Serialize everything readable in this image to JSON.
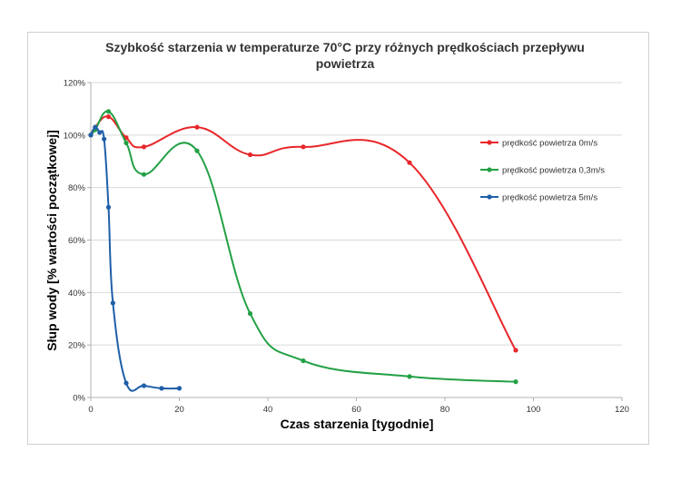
{
  "chart_data": {
    "type": "line",
    "title_line1": "Szybkość starzenia w temperaturze 70°C przy różnych prędkościach przepływu",
    "title_line2": "powietrza",
    "xlabel": "Czas starzenia [tygodnie]",
    "ylabel": "Słup wody [% wartości początkowej]",
    "xlim": [
      0,
      120
    ],
    "ylim": [
      0,
      1.2
    ],
    "x_ticks": [
      0,
      20,
      40,
      60,
      80,
      100,
      120
    ],
    "y_ticks": [
      0,
      0.2,
      0.4,
      0.6,
      0.8,
      1.0,
      1.2
    ],
    "x_tick_labels": [
      "0",
      "20",
      "40",
      "60",
      "80",
      "100",
      "120"
    ],
    "y_tick_labels": [
      "0%",
      "20%",
      "40%",
      "60%",
      "80%",
      "100%",
      "120%"
    ],
    "grid": true,
    "legend_position": "right",
    "series": [
      {
        "name": "prędkość powietrza  0m/s",
        "color": "#e8262a",
        "x": [
          0,
          1,
          4,
          8,
          12,
          24,
          36,
          48,
          72,
          96
        ],
        "y": [
          1.0,
          1.03,
          1.07,
          0.99,
          0.955,
          1.03,
          0.925,
          0.955,
          0.895,
          0.18
        ]
      },
      {
        "name": "prędkość powietrza  0,3m/s",
        "color": "#23a045",
        "x": [
          0,
          1,
          4,
          8,
          12,
          24,
          36,
          48,
          72,
          96
        ],
        "y": [
          1.0,
          1.02,
          1.09,
          0.97,
          0.85,
          0.94,
          0.32,
          0.14,
          0.08,
          0.06
        ]
      },
      {
        "name": "prędkość powietrza  5m/s",
        "color": "#1f5fa8",
        "x": [
          0,
          1,
          2,
          3,
          4,
          5,
          8,
          12,
          16,
          20
        ],
        "y": [
          1.0,
          1.03,
          1.01,
          0.985,
          0.725,
          0.36,
          0.055,
          0.045,
          0.035,
          0.035
        ]
      }
    ]
  }
}
